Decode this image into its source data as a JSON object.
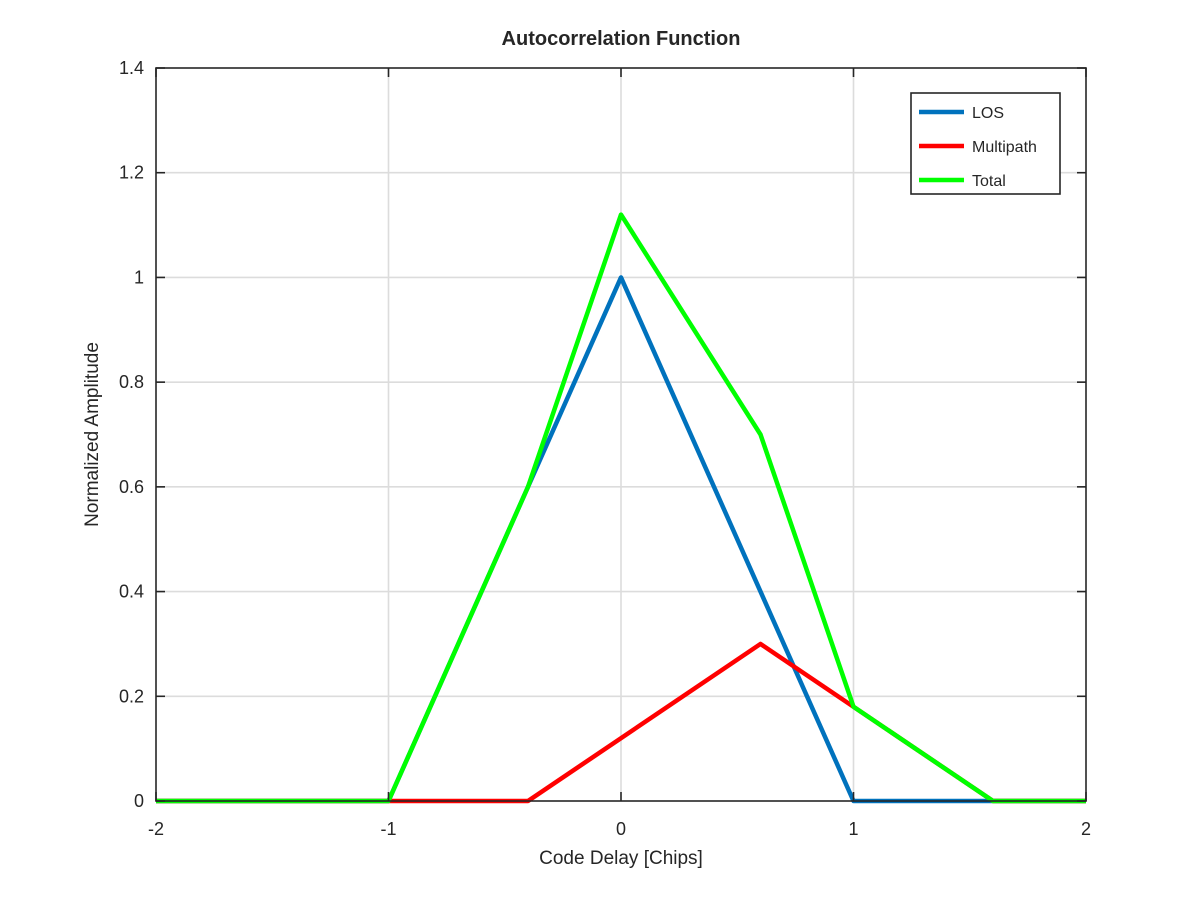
{
  "chart_data": {
    "type": "line",
    "title": "Autocorrelation Function",
    "xlabel": "Code Delay [Chips]",
    "ylabel": "Normalized Amplitude",
    "xlim": [
      -2,
      2
    ],
    "ylim": [
      0,
      1.4
    ],
    "xticks": [
      -2,
      -1,
      0,
      1,
      2
    ],
    "xtick_labels": [
      "-2",
      "-1",
      "0",
      "1",
      "2"
    ],
    "yticks": [
      0,
      0.2,
      0.4,
      0.6,
      0.8,
      1,
      1.2,
      1.4
    ],
    "ytick_labels": [
      "0",
      "0.2",
      "0.4",
      "0.6",
      "0.8",
      "1",
      "1.2",
      "1.4"
    ],
    "grid": true,
    "legend_position": "top-right",
    "series": [
      {
        "name": "LOS",
        "color": "#0072BD",
        "x": [
          -2,
          -1,
          0,
          1,
          2
        ],
        "y": [
          0,
          0,
          1,
          0,
          0
        ]
      },
      {
        "name": "Multipath",
        "color": "#FF0000",
        "x": [
          -2,
          -0.4,
          0.6,
          1.6,
          2
        ],
        "y": [
          0,
          0,
          0.3,
          0,
          0
        ]
      },
      {
        "name": "Total",
        "color": "#00FF00",
        "x": [
          -2,
          -1,
          -0.4,
          0,
          0.6,
          1,
          1.6,
          2
        ],
        "y": [
          0,
          0,
          0.6,
          1.12,
          0.7,
          0.18,
          0,
          0
        ]
      }
    ]
  }
}
